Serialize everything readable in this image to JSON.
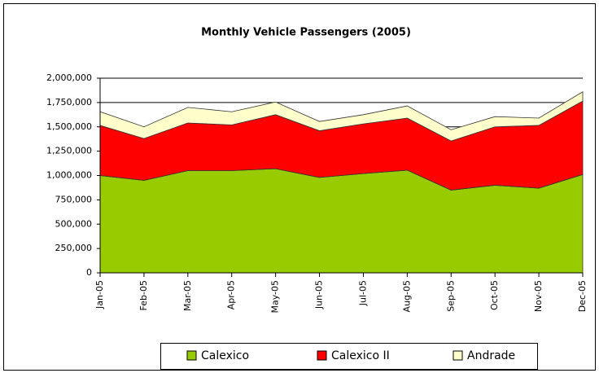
{
  "chart_data": {
    "type": "stacked_area",
    "title": "Monthly Vehicle Passengers (2005)",
    "categories": [
      "Jan-05",
      "Feb-05",
      "Mar-05",
      "Apr-05",
      "May-05",
      "Jun-05",
      "Jul-05",
      "Aug-05",
      "Sep-05",
      "Oct-05",
      "Nov-05",
      "Dec-05"
    ],
    "series": [
      {
        "name": "Calexico",
        "color": "#99cc00",
        "values": [
          1000000,
          950000,
          1050000,
          1050000,
          1070000,
          980000,
          1020000,
          1055000,
          850000,
          900000,
          870000,
          1010000
        ]
      },
      {
        "name": "Calexico II",
        "color": "#ff0000",
        "values": [
          515000,
          430000,
          490000,
          470000,
          555000,
          480000,
          510000,
          535000,
          505000,
          600000,
          645000,
          755000
        ]
      },
      {
        "name": "Andrade",
        "color": "#ffffcc",
        "values": [
          140000,
          120000,
          160000,
          135000,
          130000,
          95000,
          95000,
          125000,
          115000,
          105000,
          75000,
          95000
        ]
      }
    ],
    "ylim": [
      0,
      2000000
    ],
    "yticks": [
      0,
      {
        "value": 250000,
        "label": "250,000"
      },
      {
        "value": 500000,
        "label": "500,000"
      },
      {
        "value": 750000,
        "label": "750,000"
      },
      {
        "value": 1000000,
        "label": "1,000,000"
      },
      {
        "value": 1250000,
        "label": "1,250,000"
      },
      {
        "value": 1500000,
        "label": "1,500,000"
      },
      {
        "value": 1750000,
        "label": "1,750,000"
      },
      {
        "value": 2000000,
        "label": "2,000,000"
      }
    ],
    "grid": true,
    "legend": "bottom"
  }
}
